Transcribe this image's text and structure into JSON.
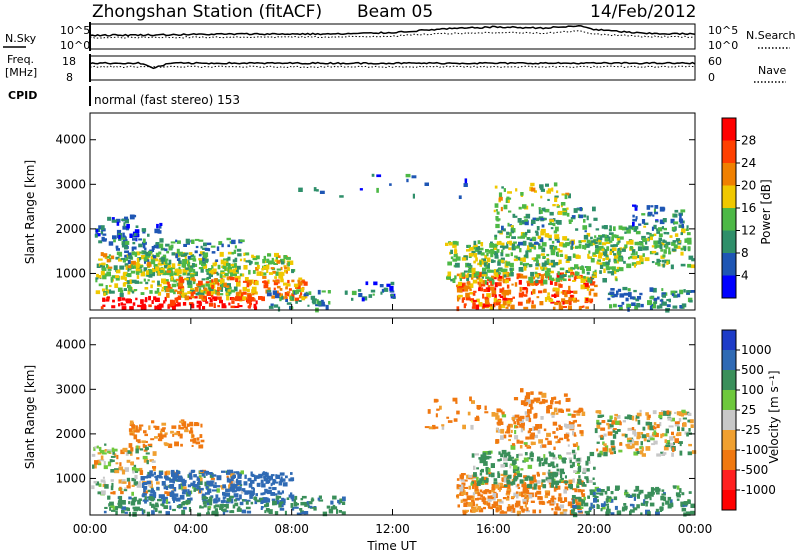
{
  "header": {
    "title": "Zhongshan Station (fitACF)",
    "beam": "Beam 05",
    "date": "14/Feb/2012",
    "mode": "normal (fast stereo) 153"
  },
  "noise_panel": {
    "left_label": "N.Sky",
    "left_ticks": [
      "10^5",
      "10^0"
    ],
    "right_label": "N.Search",
    "right_ticks": [
      "10^5",
      "10^0"
    ]
  },
  "freq_panel": {
    "left_label_line1": "Freq.",
    "left_label_line2": "[MHz]",
    "left_ticks": [
      "18",
      "8"
    ],
    "right_label": "Nave",
    "right_ticks": [
      "60",
      "0"
    ]
  },
  "cpid_label": "CPID",
  "power_panel": {
    "ylabel": "Slant Range [km]",
    "yticks": [
      "4000",
      "3000",
      "2000",
      "1000"
    ],
    "colorbar_label": "Power [dB]",
    "colorbar_ticks": [
      "28",
      "24",
      "20",
      "16",
      "12",
      "8",
      "4"
    ],
    "colors": [
      "#0000ff",
      "#1e56b4",
      "#2f8f6a",
      "#4db846",
      "#f0c800",
      "#f08000",
      "#ff4000",
      "#ff0000"
    ]
  },
  "velocity_panel": {
    "ylabel": "Slant Range [km]",
    "yticks": [
      "4000",
      "3000",
      "2000",
      "1000"
    ],
    "colorbar_label": "Velocity [m s⁻¹]",
    "colorbar_ticks": [
      "1000",
      "500",
      "100",
      "25",
      "-25",
      "-100",
      "-500",
      "-1000"
    ],
    "colors": [
      "#1e3cc8",
      "#2f6ab4",
      "#3a8f5a",
      "#6ec83c",
      "#c8c8c8",
      "#f0a030",
      "#f07810",
      "#ff2020",
      "#ff0000"
    ]
  },
  "xaxis": {
    "label": "Time UT",
    "ticks": [
      "00:00",
      "04:00",
      "08:00",
      "12:00",
      "16:00",
      "20:00",
      "00:00"
    ]
  },
  "chart_data": [
    {
      "type": "heatmap",
      "title": "Power",
      "xlabel": "Time UT",
      "ylabel": "Slant Range [km]",
      "xlim": [
        0,
        24
      ],
      "ylim": [
        180,
        4600
      ],
      "colorbar": {
        "label": "Power [dB]",
        "range": [
          0,
          32
        ],
        "ticks": [
          4,
          8,
          12,
          16,
          20,
          24,
          28
        ]
      },
      "blobs": [
        [
          0.2,
          5.8,
          900,
          350,
          14,
          0.85
        ],
        [
          0.4,
          6.6,
          380,
          120,
          30,
          0.95
        ],
        [
          3.0,
          8.5,
          700,
          250,
          22,
          0.8
        ],
        [
          0.3,
          8.0,
          1250,
          250,
          16,
          0.75
        ],
        [
          1.0,
          6.0,
          1550,
          250,
          10,
          0.6
        ],
        [
          0.0,
          2.2,
          1900,
          180,
          8,
          0.6
        ],
        [
          0.3,
          2.8,
          2100,
          250,
          6,
          0.35
        ],
        [
          7.0,
          9.5,
          400,
          250,
          10,
          0.6
        ],
        [
          10.0,
          12.0,
          600,
          250,
          8,
          0.35
        ],
        [
          14.5,
          20.0,
          650,
          400,
          24,
          0.85
        ],
        [
          14.0,
          21.0,
          1300,
          450,
          14,
          0.75
        ],
        [
          16.0,
          20.0,
          2050,
          450,
          12,
          0.55
        ],
        [
          16.0,
          19.0,
          2700,
          350,
          16,
          0.35
        ],
        [
          20.0,
          24.0,
          1650,
          450,
          13,
          0.75
        ],
        [
          21.5,
          23.5,
          2300,
          250,
          8,
          0.55
        ],
        [
          20.5,
          24.0,
          450,
          250,
          10,
          0.65
        ],
        [
          8.0,
          16.0,
          3000,
          250,
          8,
          0.06
        ]
      ]
    },
    {
      "type": "heatmap",
      "title": "Velocity",
      "xlabel": "Time UT",
      "ylabel": "Slant Range [km]",
      "xlim": [
        0,
        24
      ],
      "ylim": [
        180,
        4600
      ],
      "colorbar": {
        "label": "Velocity [m s⁻¹]",
        "ticks": [
          1000,
          500,
          100,
          25,
          -25,
          -100,
          -500,
          -1000
        ]
      },
      "blobs": [
        [
          1.5,
          4.5,
          2050,
          300,
          -200,
          0.65
        ],
        [
          0.0,
          2.5,
          1500,
          300,
          0,
          0.7
        ],
        [
          0.0,
          6.0,
          950,
          250,
          0,
          0.55
        ],
        [
          2.0,
          8.0,
          850,
          350,
          600,
          0.8
        ],
        [
          0.5,
          10.0,
          420,
          200,
          200,
          0.75
        ],
        [
          14.5,
          19.5,
          700,
          450,
          -150,
          0.85
        ],
        [
          15.0,
          20.0,
          1250,
          400,
          150,
          0.7
        ],
        [
          16.0,
          19.5,
          2150,
          450,
          -100,
          0.55
        ],
        [
          17.0,
          19.0,
          2800,
          250,
          -200,
          0.35
        ],
        [
          20.0,
          24.0,
          2050,
          500,
          0,
          0.7
        ],
        [
          19.0,
          24.0,
          450,
          400,
          200,
          0.7
        ],
        [
          13.0,
          18.0,
          2500,
          350,
          -150,
          0.2
        ]
      ]
    },
    {
      "type": "line",
      "title": "N.Sky / N.Search",
      "x": [
        0,
        2,
        4,
        6,
        8,
        10,
        12,
        14,
        16,
        18,
        19.5,
        20,
        22,
        24
      ],
      "series": [
        {
          "values": [
            0.55,
            0.56,
            0.58,
            0.6,
            0.6,
            0.6,
            0.66,
            0.8,
            0.88,
            0.84,
            0.92,
            0.78,
            0.62,
            0.6
          ]
        },
        {
          "values": [
            0.45,
            0.46,
            0.47,
            0.48,
            0.48,
            0.48,
            0.52,
            0.62,
            0.66,
            0.64,
            0.72,
            0.6,
            0.5,
            0.48
          ]
        }
      ]
    },
    {
      "type": "line",
      "title": "Freq / Nave",
      "x": [
        0,
        2,
        2.5,
        3.2,
        4,
        8,
        12,
        16,
        20,
        24
      ],
      "series": [
        {
          "values": [
            0.7,
            0.7,
            0.5,
            0.7,
            0.7,
            0.7,
            0.7,
            0.7,
            0.7,
            0.7
          ]
        },
        {
          "values": [
            0.55,
            0.55,
            0.55,
            0.55,
            0.55,
            0.55,
            0.55,
            0.55,
            0.55,
            0.55
          ]
        }
      ]
    }
  ]
}
